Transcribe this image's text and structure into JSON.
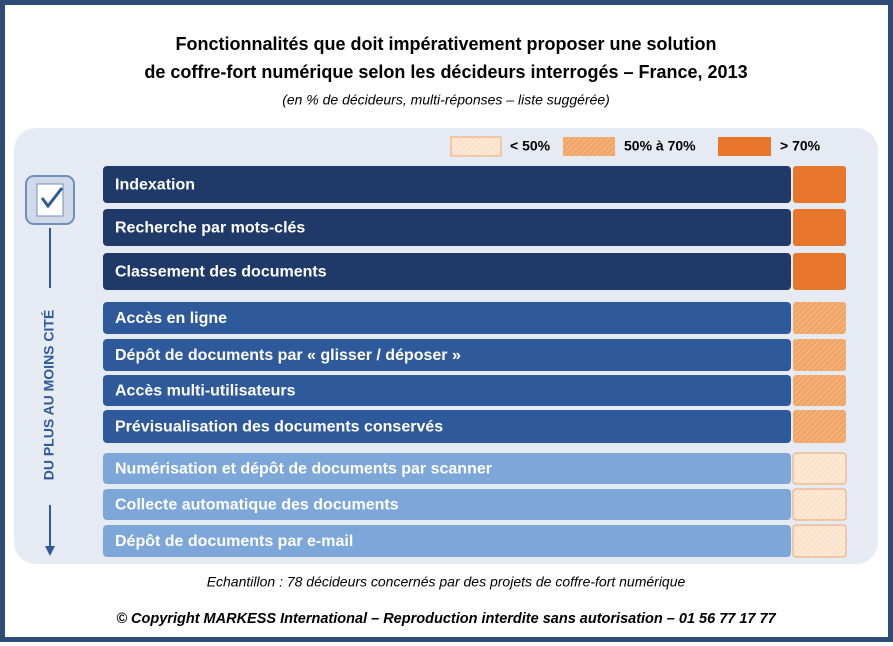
{
  "header": {
    "title_lines": [
      "Fonctionnalités que doit impérativement proposer une solution",
      "de coffre-fort numérique selon les décideurs interrogés – France, 2013"
    ],
    "subtitle": "(en % de décideurs, multi-réponses – liste suggérée)"
  },
  "legend": [
    {
      "label": "< 50%",
      "color": "#fbe0c8",
      "fill": "light"
    },
    {
      "label": "50% à 70%",
      "color": "#f1a566",
      "fill": "mid"
    },
    {
      "label": "> 70%",
      "color": "#e8762b",
      "fill": "dark"
    }
  ],
  "side_label": "DU PLUS AU MOINS CITÉ",
  "groups": [
    {
      "legend": 2,
      "color": "#1f3a68",
      "rows": [
        "Indexation",
        "Recherche par mots-clés",
        "Classement des documents"
      ]
    },
    {
      "legend": 1,
      "color": "#2e5a9c",
      "rows": [
        "Accès en ligne",
        "Dépôt de documents par « glisser / déposer »",
        "Accès multi-utilisateurs",
        "Prévisualisation des documents conservés"
      ]
    },
    {
      "legend": 0,
      "color": "#7da6d9",
      "rows": [
        "Numérisation et dépôt de documents par scanner",
        "Collecte automatique des documents",
        "Dépôt de documents par e-mail"
      ]
    }
  ],
  "footnote": "Echantillon : 78 décideurs concernés par des projets de coffre-fort numérique",
  "copyright": "© Copyright MARKESS International – Reproduction interdite sans autorisation – 01 56 77 17 77"
}
